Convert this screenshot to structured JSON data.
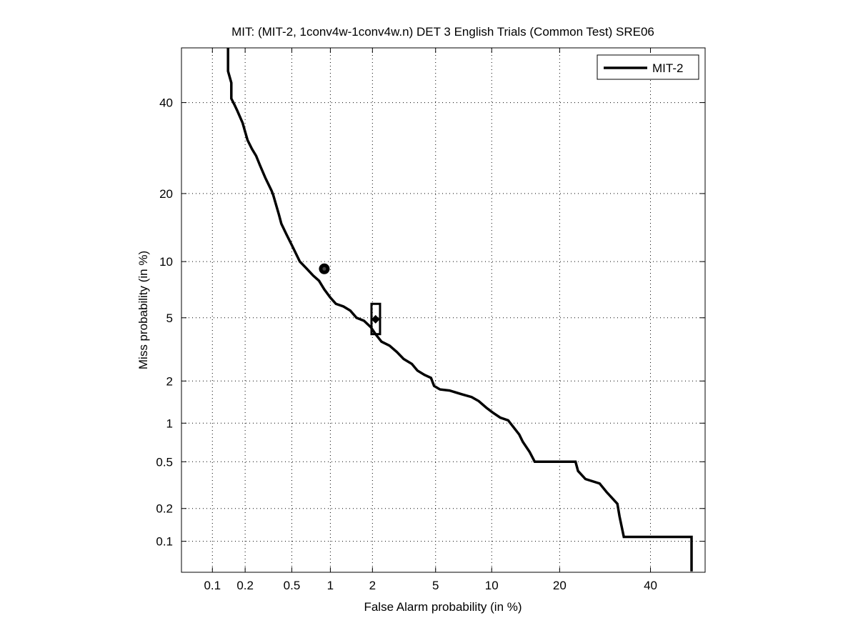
{
  "chart_data": {
    "type": "line",
    "title": "MIT: (MIT-2, 1conv4w-1conv4w.n) DET 3 English Trials (Common Test) SRE06",
    "xlabel": "False Alarm probability (in %)",
    "ylabel": "Miss probability (in %)",
    "xscale": "probit",
    "yscale": "probit",
    "xlim": [
      0.05,
      54
    ],
    "ylim": [
      0.05,
      54
    ],
    "xticks": [
      0.1,
      0.2,
      0.5,
      1,
      2,
      5,
      10,
      20,
      40
    ],
    "xtick_labels": [
      "0.1",
      "0.2",
      "0.5",
      "1",
      "2",
      "5",
      "10",
      "20",
      "40"
    ],
    "yticks": [
      0.1,
      0.2,
      0.5,
      1,
      2,
      5,
      10,
      20,
      40
    ],
    "ytick_labels": [
      "0.1",
      "0.2",
      "0.5",
      "1",
      "2",
      "5",
      "10",
      "20",
      "40"
    ],
    "grid": true,
    "legend": {
      "position": "top-right",
      "entries": [
        "MIT-2"
      ]
    },
    "series": [
      {
        "name": "MIT-2",
        "color": "#000000",
        "x": [
          0.14,
          0.14,
          0.15,
          0.15,
          0.16,
          0.17,
          0.19,
          0.21,
          0.23,
          0.25,
          0.27,
          0.3,
          0.34,
          0.35,
          0.39,
          0.41,
          0.45,
          0.5,
          0.58,
          0.66,
          0.74,
          0.82,
          0.9,
          1.0,
          1.1,
          1.25,
          1.4,
          1.55,
          1.75,
          1.95,
          2.1,
          2.3,
          2.6,
          2.9,
          3.2,
          3.6,
          3.9,
          4.3,
          4.7,
          4.9,
          5.3,
          6.0,
          7.0,
          7.9,
          8.6,
          9.4,
          10.1,
          11.0,
          12.0,
          13.5,
          14.0,
          15.0,
          15.8,
          23.0,
          23.5,
          25.0,
          28.0,
          29.5,
          32.0,
          32.5,
          33.5,
          50.5,
          50.5
        ],
        "y": [
          55,
          48,
          45,
          41,
          39.5,
          38,
          35,
          31,
          29,
          27.5,
          25.5,
          23,
          20.5,
          19.8,
          16.5,
          15,
          13.5,
          12,
          10,
          9.2,
          8.5,
          8,
          7.2,
          6.5,
          6,
          5.8,
          5.5,
          5.0,
          4.8,
          4.4,
          4.0,
          3.6,
          3.4,
          3.1,
          2.8,
          2.6,
          2.35,
          2.2,
          2.1,
          1.85,
          1.75,
          1.72,
          1.62,
          1.55,
          1.45,
          1.3,
          1.2,
          1.1,
          1.05,
          0.82,
          0.72,
          0.6,
          0.5,
          0.5,
          0.42,
          0.36,
          0.33,
          0.28,
          0.22,
          0.17,
          0.11,
          0.11,
          0.051
        ]
      }
    ],
    "markers": [
      {
        "name": "min-dcf-point",
        "shape": "circle",
        "x": 0.9,
        "y": 9.2
      },
      {
        "name": "actual-decision-point",
        "shape": "diamond",
        "x": 2.1,
        "y": 4.9
      },
      {
        "name": "confidence-box",
        "shape": "rectangle",
        "x_range": [
          1.97,
          2.25
        ],
        "y_range": [
          4.0,
          6.0
        ]
      }
    ]
  }
}
